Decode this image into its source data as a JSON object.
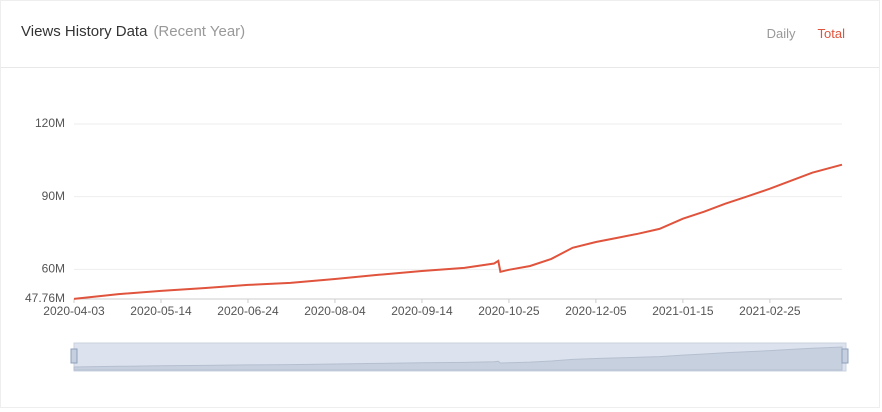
{
  "header": {
    "title": "Views History Data",
    "subtitle": "(Recent Year)",
    "tabs": [
      "Daily",
      "Total"
    ],
    "active_tab": "Total"
  },
  "chart_data": {
    "type": "line",
    "x": [
      "2020-04-03",
      "2020-04-24",
      "2020-05-14",
      "2020-06-04",
      "2020-06-24",
      "2020-07-14",
      "2020-08-04",
      "2020-08-24",
      "2020-09-14",
      "2020-10-04",
      "2020-10-18",
      "2020-10-20",
      "2020-10-21",
      "2020-10-25",
      "2020-11-04",
      "2020-11-14",
      "2020-11-24",
      "2020-12-05",
      "2020-12-15",
      "2020-12-25",
      "2021-01-04",
      "2021-01-15",
      "2021-01-25",
      "2021-02-04",
      "2021-02-14",
      "2021-02-25",
      "2021-03-07",
      "2021-03-17",
      "2021-03-31"
    ],
    "series": [
      {
        "name": "Total",
        "color": "#e0533c",
        "values": [
          47.8,
          49.8,
          51.1,
          52.3,
          53.6,
          54.4,
          56.0,
          57.7,
          59.3,
          60.6,
          62.4,
          63.5,
          59.0,
          59.8,
          61.4,
          64.3,
          68.9,
          71.3,
          73.0,
          74.7,
          76.7,
          80.9,
          83.8,
          87.1,
          90.0,
          93.3,
          96.6,
          99.9,
          103.2
        ]
      }
    ],
    "xlim": [
      "2020-04-03",
      "2021-03-31"
    ],
    "xticks": [
      "2020-04-03",
      "2020-05-14",
      "2020-06-24",
      "2020-08-04",
      "2020-09-14",
      "2020-10-25",
      "2020-12-05",
      "2021-01-15",
      "2021-02-25"
    ],
    "ylim": [
      47.76,
      120
    ],
    "yticks": [
      {
        "value": 47.76,
        "label": "47.76M"
      },
      {
        "value": 60,
        "label": "60M"
      },
      {
        "value": 90,
        "label": "90M"
      },
      {
        "value": 120,
        "label": "120M"
      }
    ],
    "grid": true
  }
}
